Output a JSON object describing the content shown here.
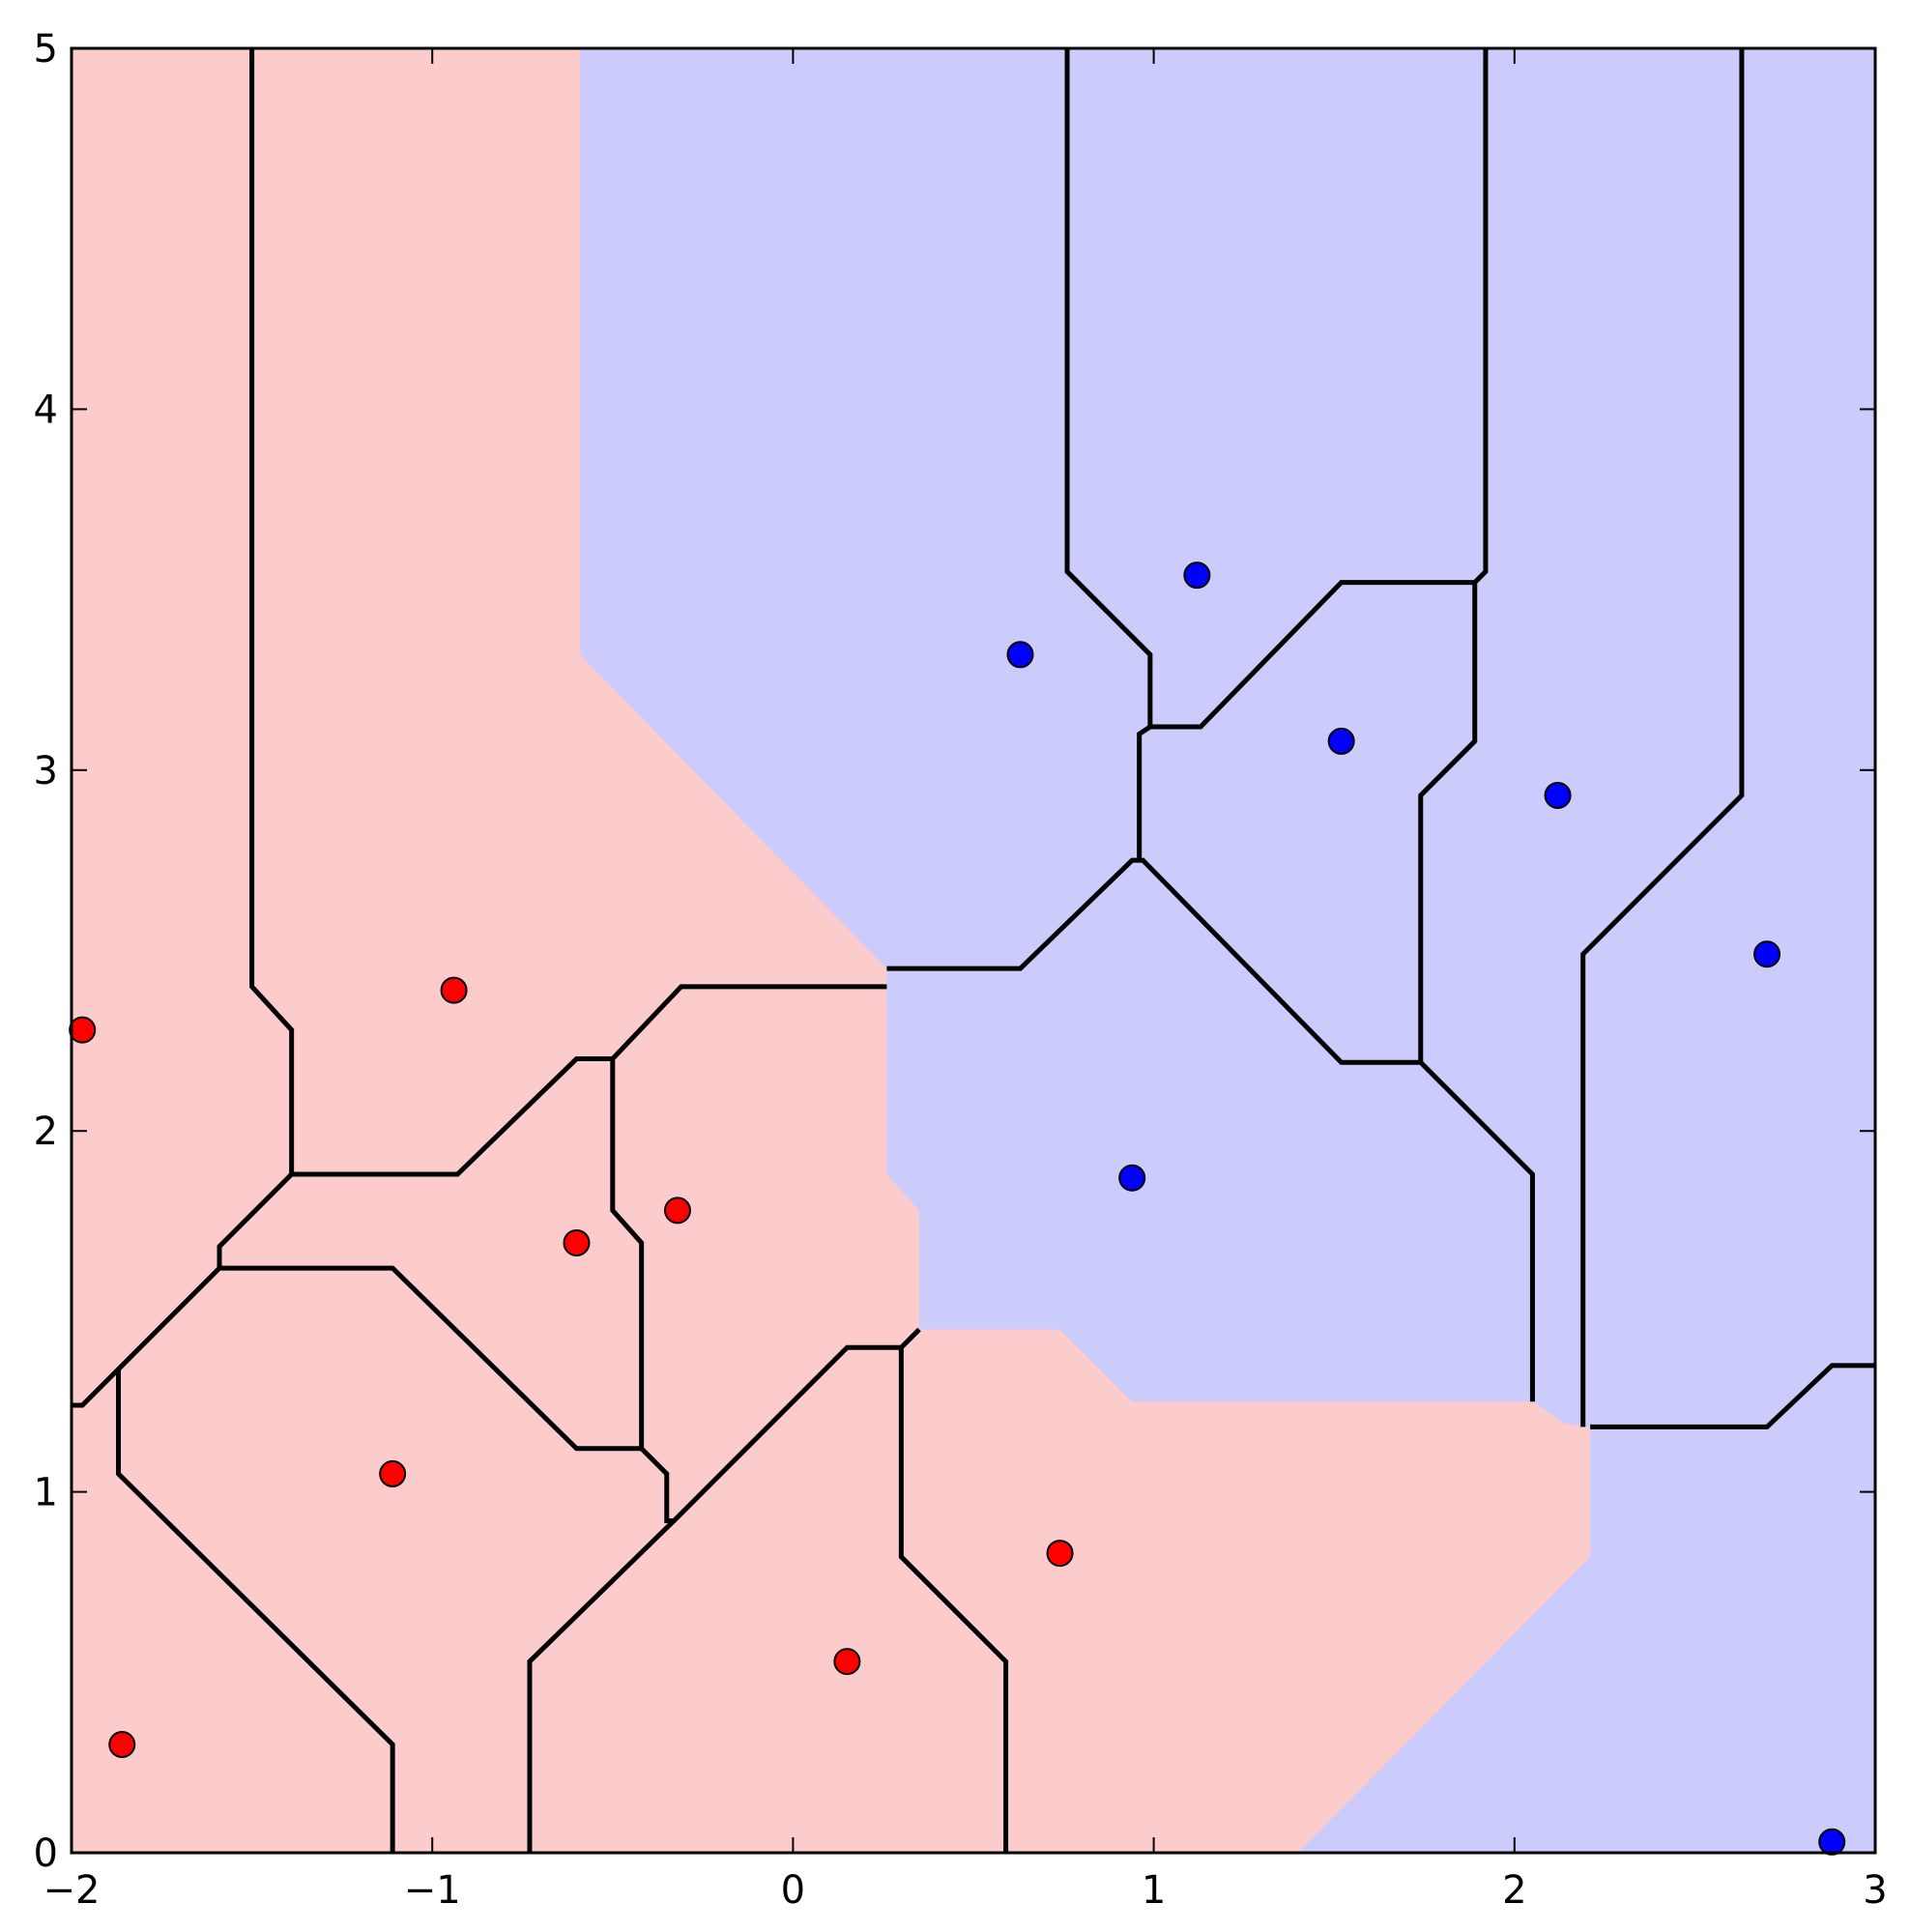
{
  "chart_data": {
    "type": "scatter",
    "title": "",
    "xlabel": "",
    "ylabel": "",
    "xlim": [
      -2,
      3
    ],
    "ylim": [
      0,
      5
    ],
    "grid": false,
    "legend": "none",
    "x_ticks": [
      -2,
      -1,
      0,
      1,
      2,
      3
    ],
    "y_ticks": [
      0,
      1,
      2,
      3,
      4,
      5
    ],
    "x_tick_labels": [
      "−2",
      "−1",
      "0",
      "1",
      "2",
      "3"
    ],
    "y_tick_labels": [
      "0",
      "1",
      "2",
      "3",
      "4",
      "5"
    ],
    "colors": {
      "red_region": "#fccbcb",
      "blue_region": "#cbcbfc",
      "red_point": "#ff0000",
      "blue_point": "#0000ff",
      "boundary": "#000000"
    },
    "series": [
      {
        "color": "#ff0000",
        "points": [
          [
            -1.97,
            2.28
          ],
          [
            -0.94,
            2.39
          ],
          [
            -0.6,
            1.69
          ],
          [
            -0.32,
            1.78
          ],
          [
            -1.11,
            1.05
          ],
          [
            -1.86,
            0.3
          ],
          [
            0.15,
            0.53
          ],
          [
            0.74,
            0.83
          ]
        ]
      },
      {
        "color": "#0000ff",
        "points": [
          [
            0.63,
            3.32
          ],
          [
            1.12,
            3.54
          ],
          [
            1.52,
            3.08
          ],
          [
            2.12,
            2.93
          ],
          [
            2.7,
            2.49
          ],
          [
            0.94,
            1.87
          ],
          [
            2.88,
            0.03
          ]
        ]
      }
    ],
    "red_region": [
      [
        -2,
        0
      ],
      [
        1.4,
        0
      ],
      [
        2.21,
        0.82
      ],
      [
        2.21,
        1.18
      ],
      [
        2.14,
        1.19
      ],
      [
        2.05,
        1.25
      ],
      [
        0.94,
        1.25
      ],
      [
        0.74,
        1.45
      ],
      [
        0.35,
        1.45
      ],
      [
        0.35,
        1.78
      ],
      [
        0.26,
        1.88
      ],
      [
        0.26,
        2.45
      ],
      [
        -0.59,
        3.32
      ],
      [
        -0.59,
        5
      ],
      [
        -2,
        5
      ]
    ],
    "cell_edges": [
      [
        [
          -1.5,
          5
        ],
        [
          -1.5,
          2.4
        ],
        [
          -1.39,
          2.28
        ],
        [
          -1.39,
          1.88
        ],
        [
          -0.93,
          1.88
        ],
        [
          -0.6,
          2.2
        ],
        [
          -0.5,
          2.2
        ],
        [
          -0.31,
          2.4
        ],
        [
          0.26,
          2.4
        ]
      ],
      [
        [
          -1.39,
          1.88
        ],
        [
          -1.59,
          1.68
        ],
        [
          -1.59,
          1.62
        ],
        [
          -1.87,
          1.34
        ],
        [
          -1.97,
          1.24
        ],
        [
          -2,
          1.24
        ]
      ],
      [
        [
          -1.59,
          1.62
        ],
        [
          -1.11,
          1.62
        ],
        [
          -0.6,
          1.12
        ],
        [
          -0.42,
          1.12
        ],
        [
          -0.35,
          1.05
        ],
        [
          -0.35,
          0.92
        ],
        [
          -0.33,
          0.92
        ],
        [
          0.15,
          1.4
        ],
        [
          0.3,
          1.4
        ]
      ],
      [
        [
          -0.5,
          2.2
        ],
        [
          -0.5,
          1.78
        ],
        [
          -0.42,
          1.69
        ],
        [
          -0.42,
          1.12
        ]
      ],
      [
        [
          -1.87,
          1.34
        ],
        [
          -1.87,
          1.05
        ],
        [
          -1.11,
          0.3
        ],
        [
          -1.11,
          0
        ]
      ],
      [
        [
          -0.33,
          0.92
        ],
        [
          -0.73,
          0.53
        ],
        [
          -0.73,
          0
        ]
      ],
      [
        [
          0.3,
          1.4
        ],
        [
          0.3,
          0.82
        ],
        [
          0.59,
          0.53
        ],
        [
          0.59,
          0
        ]
      ],
      [
        [
          0.3,
          1.4
        ],
        [
          0.35,
          1.45
        ]
      ],
      [
        [
          0.26,
          2.45
        ],
        [
          0.63,
          2.45
        ],
        [
          0.94,
          2.75
        ],
        [
          0.97,
          2.75
        ],
        [
          1.52,
          2.19
        ],
        [
          1.74,
          2.19
        ],
        [
          2.05,
          1.88
        ],
        [
          2.05,
          1.25
        ]
      ],
      [
        [
          0.96,
          2.75
        ],
        [
          0.96,
          3.1
        ],
        [
          0.99,
          3.12
        ],
        [
          1.13,
          3.12
        ],
        [
          1.52,
          3.52
        ],
        [
          1.89,
          3.52
        ],
        [
          1.92,
          3.55
        ],
        [
          1.92,
          5
        ]
      ],
      [
        [
          0.99,
          3.12
        ],
        [
          0.99,
          3.32
        ],
        [
          0.76,
          3.55
        ],
        [
          0.76,
          5
        ]
      ],
      [
        [
          1.89,
          3.52
        ],
        [
          1.89,
          3.08
        ],
        [
          1.74,
          2.93
        ],
        [
          1.74,
          2.19
        ]
      ],
      [
        [
          2.19,
          1.18
        ],
        [
          2.19,
          2.49
        ],
        [
          2.63,
          2.93
        ],
        [
          2.63,
          5
        ]
      ],
      [
        [
          2.21,
          1.18
        ],
        [
          2.7,
          1.18
        ],
        [
          2.88,
          1.35
        ],
        [
          3,
          1.35
        ]
      ]
    ]
  }
}
